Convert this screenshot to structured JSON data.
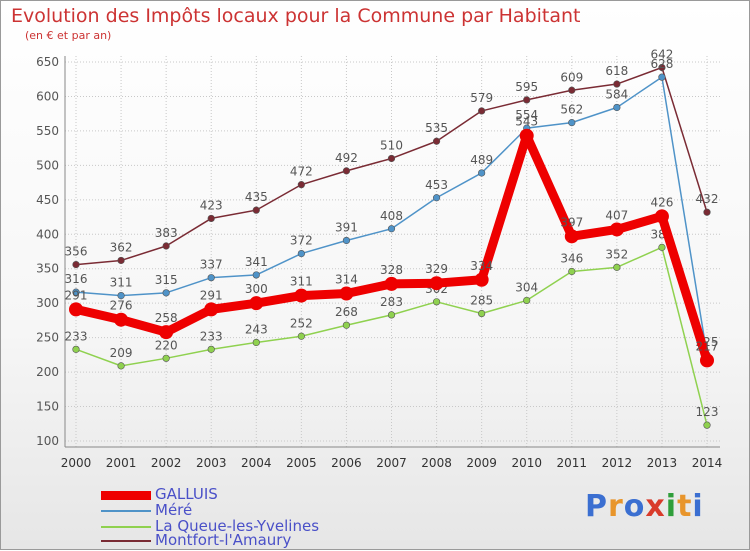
{
  "header": {
    "title": "Evolution des Impôts locaux pour la Commune par Habitant",
    "subtitle": "(en € et par an)"
  },
  "logo": {
    "chars": [
      "P",
      "r",
      "o",
      "x",
      "i",
      "t",
      "i"
    ],
    "colors": [
      "#3b6fd1",
      "#e8952b",
      "#3b6fd1",
      "#d93b2b",
      "#2f9e3b",
      "#e8952b",
      "#3b6fd1"
    ]
  },
  "chart_data": {
    "type": "line",
    "title": "Evolution des Impôts locaux pour la Commune par Habitant",
    "subtitle": "(en € et par an)",
    "x": [
      "2000",
      "2001",
      "2002",
      "2003",
      "2004",
      "2005",
      "2006",
      "2007",
      "2008",
      "2009",
      "2010",
      "2011",
      "2012",
      "2013",
      "2014"
    ],
    "ylim": [
      100,
      650
    ],
    "yticks": [
      "100",
      "150",
      "200",
      "250",
      "300",
      "350",
      "400",
      "450",
      "500",
      "550",
      "600",
      "650"
    ],
    "grid": true,
    "legend_position": "bottom-left",
    "series": [
      {
        "name": "Montfort-l'Amaury",
        "color": "#7a2b34",
        "values": [
          356,
          362,
          383,
          423,
          435,
          472,
          492,
          510,
          535,
          579,
          595,
          609,
          618,
          642,
          432
        ],
        "labels": [
          "356",
          "362",
          "383",
          "423",
          "435",
          "472",
          "492",
          "510",
          "535",
          "579",
          "595",
          "609",
          "618",
          "642",
          "432"
        ]
      },
      {
        "name": "Méré",
        "color": "#4f93c8",
        "values": [
          316,
          311,
          315,
          337,
          341,
          372,
          391,
          408,
          453,
          489,
          554,
          562,
          584,
          628,
          225
        ],
        "labels": [
          "316",
          "311",
          "315",
          "337",
          "341",
          "372",
          "391",
          "408",
          "453",
          "489",
          "554",
          "562",
          "584",
          "628",
          "225"
        ]
      },
      {
        "name": "La Queue-les-Yvelines",
        "color": "#8fd14f",
        "values": [
          233,
          209,
          220,
          233,
          243,
          252,
          268,
          283,
          302,
          285,
          304,
          346,
          352,
          381,
          123
        ],
        "labels": [
          "233",
          "209",
          "220",
          "233",
          "243",
          "252",
          "268",
          "283",
          "302",
          "285",
          "304",
          "346",
          "352",
          "381",
          "123"
        ]
      },
      {
        "name": "GALLUIS",
        "color": "#ee0000",
        "values": [
          291,
          276,
          258,
          291,
          300,
          311,
          314,
          328,
          329,
          334,
          543,
          397,
          407,
          426,
          217
        ],
        "labels": [
          "291",
          "276",
          "258",
          "291",
          "300",
          "311",
          "314",
          "328",
          "329",
          "334",
          "543",
          "397",
          "407",
          "426",
          "217"
        ]
      }
    ],
    "legend": [
      "GALLUIS",
      "Méré",
      "La Queue-les-Yvelines",
      "Montfort-l'Amaury"
    ]
  }
}
